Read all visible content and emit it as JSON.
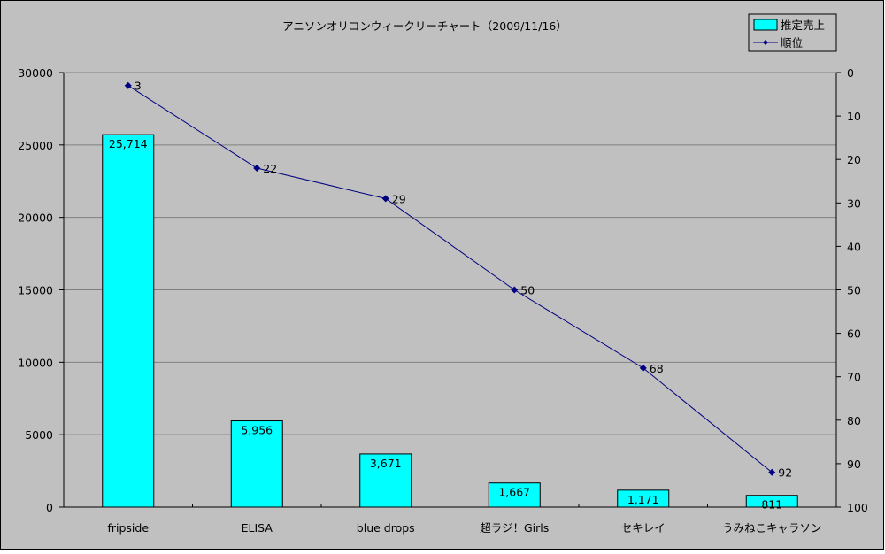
{
  "chart_data": {
    "type": "bar",
    "title": "アニソンオリコンウィークリーチャート（2009/11/16）",
    "categories": [
      "fripside",
      "ELISA",
      "blue drops",
      "超ラジ！Girls",
      "セキレイ",
      "うみねこキャラソン"
    ],
    "series": [
      {
        "name": "推定売上",
        "type": "bar",
        "axis": "left",
        "color": "#00ffff",
        "values": [
          25714,
          5956,
          3671,
          1667,
          1171,
          811
        ],
        "labels": [
          "25,714",
          "5,956",
          "3,671",
          "1,667",
          "1,171",
          "811"
        ]
      },
      {
        "name": "順位",
        "type": "line",
        "axis": "right",
        "color": "#000080",
        "values": [
          3,
          22,
          29,
          50,
          68,
          92
        ],
        "labels": [
          "3",
          "22",
          "29",
          "50",
          "68",
          "92"
        ]
      }
    ],
    "y_left": {
      "min": 0,
      "max": 30000,
      "ticks": [
        "0",
        "5000",
        "10000",
        "15000",
        "20000",
        "25000",
        "30000"
      ]
    },
    "y_right": {
      "min": 0,
      "max": 100,
      "reversed": true,
      "ticks": [
        "0",
        "10",
        "20",
        "30",
        "40",
        "50",
        "60",
        "70",
        "80",
        "90",
        "100"
      ]
    },
    "grid": true,
    "legend": "top-right",
    "background": "#c0c0c0"
  }
}
